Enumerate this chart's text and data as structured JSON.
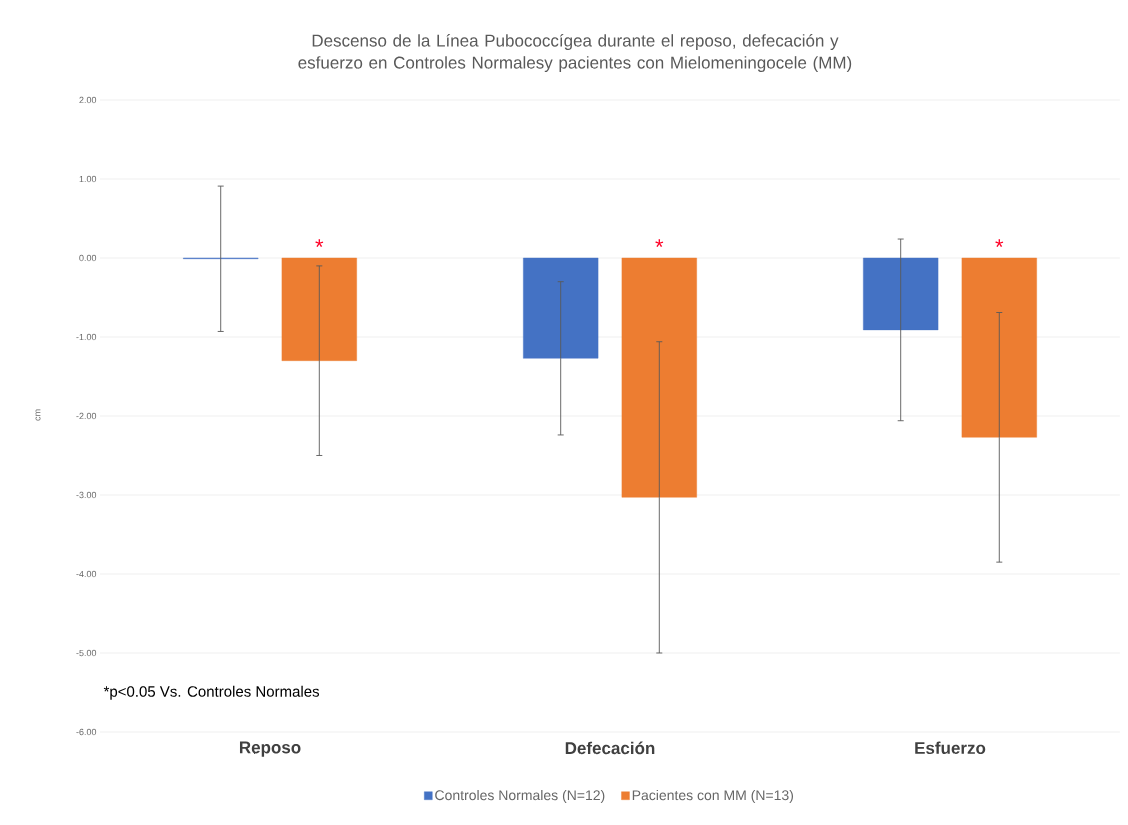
{
  "chart_data": {
    "type": "bar",
    "title": "Descenso de la Línea Pubococcígea durante el reposo, defecación y esfuerzo en Controles Normalesy pacientes con Mielomeningocele (MM)",
    "ylabel": "cm",
    "categories": [
      "Reposo",
      "Defecación",
      "Esfuerzo"
    ],
    "series": [
      {
        "name": "Controles Normales (N=12)",
        "color": "#4472c4",
        "values": [
          -0.01,
          -1.27,
          -0.91
        ],
        "errors": [
          0.92,
          0.97,
          1.15
        ]
      },
      {
        "name": "Pacientes con MM (N=13)",
        "color": "#ed7d31",
        "values": [
          -1.3,
          -3.03,
          -2.27
        ],
        "errors": [
          1.2,
          1.97,
          1.58
        ]
      }
    ],
    "ylim": [
      -6,
      2
    ],
    "yticks": [
      {
        "value": 2,
        "label": "2.00"
      },
      {
        "value": 1,
        "label": "1.00"
      },
      {
        "value": 0,
        "label": "0.00"
      },
      {
        "value": -1,
        "label": "-1.00"
      },
      {
        "value": -2,
        "label": "-2.00"
      },
      {
        "value": -3,
        "label": "-3.00"
      },
      {
        "value": -4,
        "label": "-4.00"
      },
      {
        "value": -5,
        "label": "-5.00"
      },
      {
        "value": -6,
        "label": "-6.00"
      }
    ],
    "grid": "y",
    "legend": "bottom",
    "annotations": [
      "*",
      "*",
      "*",
      "*p<0.05 Vs. Controles Normales"
    ]
  }
}
